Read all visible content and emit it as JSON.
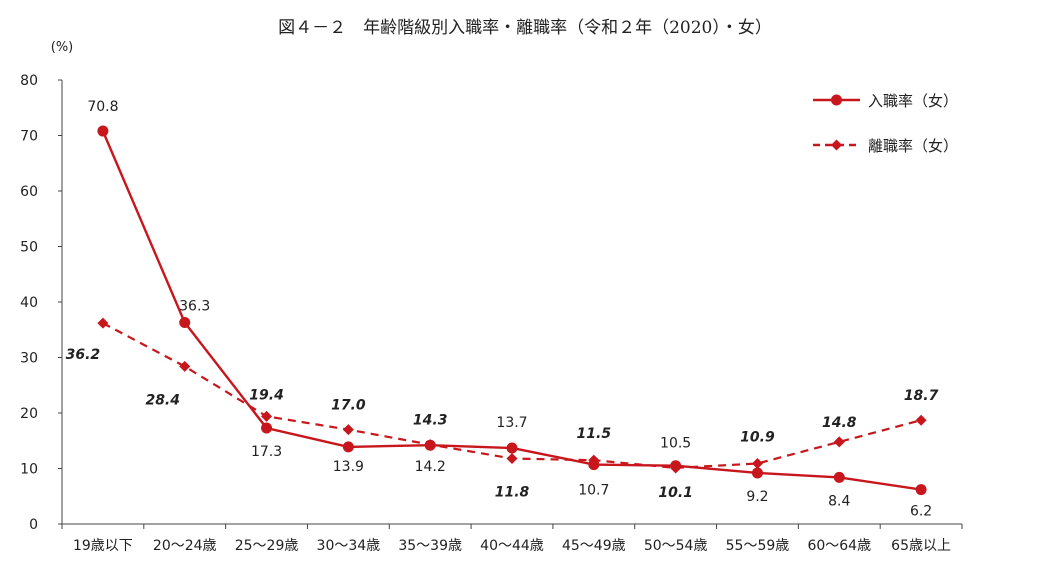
{
  "chart_data": {
    "type": "line",
    "title": "図４－２　年齢階級別入職率・離職率（令和２年（2020）・女）",
    "y_unit_label": "(%)",
    "ylim": [
      0,
      80
    ],
    "yticks": [
      0,
      10,
      20,
      30,
      40,
      50,
      60,
      70,
      80
    ],
    "categories": [
      "19歳以下",
      "20～24歳",
      "25～29歳",
      "30～34歳",
      "35～39歳",
      "40～44歳",
      "45～49歳",
      "50～54歳",
      "55～59歳",
      "60～64歳",
      "65歳以上"
    ],
    "series": [
      {
        "name": "入職率（女）",
        "style": "solid",
        "marker": "circle",
        "color": "#c8161d",
        "values": [
          70.8,
          36.3,
          17.3,
          13.9,
          14.2,
          13.7,
          10.7,
          10.5,
          9.2,
          8.4,
          6.2
        ],
        "labels": [
          "70.8",
          "36.3",
          "17.3",
          "13.9",
          "14.2",
          "13.7",
          "10.7",
          "10.5",
          "9.2",
          "8.4",
          "6.2"
        ]
      },
      {
        "name": "離職率（女）",
        "style": "dashed",
        "marker": "diamond",
        "color": "#c8161d",
        "values": [
          36.2,
          28.4,
          19.4,
          17.0,
          14.3,
          11.8,
          11.5,
          10.1,
          10.9,
          14.8,
          18.7
        ],
        "labels": [
          "36.2",
          "28.4",
          "19.4",
          "17.0",
          "14.3",
          "11.8",
          "11.5",
          "10.1",
          "10.9",
          "14.8",
          "18.7"
        ]
      }
    ],
    "legend_position": "top-right",
    "grid": false
  }
}
